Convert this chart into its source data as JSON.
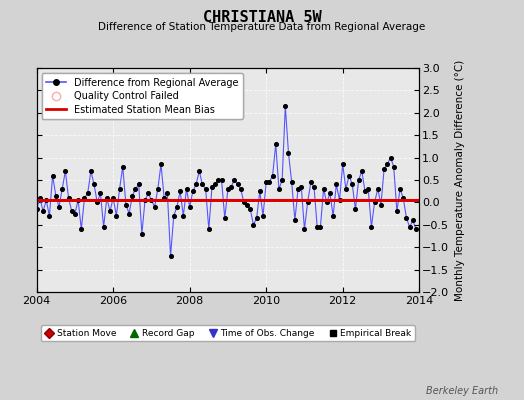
{
  "title": "CHRISTIANA 5W",
  "subtitle": "Difference of Station Temperature Data from Regional Average",
  "ylabel": "Monthly Temperature Anomaly Difference (°C)",
  "xlim": [
    2004.0,
    2014.0
  ],
  "ylim": [
    -2.0,
    3.0
  ],
  "yticks": [
    -2,
    -1.5,
    -1,
    -0.5,
    0,
    0.5,
    1,
    1.5,
    2,
    2.5,
    3
  ],
  "xticks": [
    2004,
    2006,
    2008,
    2010,
    2012,
    2014
  ],
  "bias_value": 0.05,
  "background_color": "#d3d3d3",
  "plot_bg_color": "#e8e8e8",
  "line_color": "#5555ff",
  "marker_color": "#000000",
  "bias_color": "#dd0000",
  "watermark": "Berkeley Earth",
  "time_series": [
    2004.0,
    2004.083,
    2004.167,
    2004.25,
    2004.333,
    2004.417,
    2004.5,
    2004.583,
    2004.667,
    2004.75,
    2004.833,
    2004.917,
    2005.0,
    2005.083,
    2005.167,
    2005.25,
    2005.333,
    2005.417,
    2005.5,
    2005.583,
    2005.667,
    2005.75,
    2005.833,
    2005.917,
    2006.0,
    2006.083,
    2006.167,
    2006.25,
    2006.333,
    2006.417,
    2006.5,
    2006.583,
    2006.667,
    2006.75,
    2006.833,
    2006.917,
    2007.0,
    2007.083,
    2007.167,
    2007.25,
    2007.333,
    2007.417,
    2007.5,
    2007.583,
    2007.667,
    2007.75,
    2007.833,
    2007.917,
    2008.0,
    2008.083,
    2008.167,
    2008.25,
    2008.333,
    2008.417,
    2008.5,
    2008.583,
    2008.667,
    2008.75,
    2008.833,
    2008.917,
    2009.0,
    2009.083,
    2009.167,
    2009.25,
    2009.333,
    2009.417,
    2009.5,
    2009.583,
    2009.667,
    2009.75,
    2009.833,
    2009.917,
    2010.0,
    2010.083,
    2010.167,
    2010.25,
    2010.333,
    2010.417,
    2010.5,
    2010.583,
    2010.667,
    2010.75,
    2010.833,
    2010.917,
    2011.0,
    2011.083,
    2011.167,
    2011.25,
    2011.333,
    2011.417,
    2011.5,
    2011.583,
    2011.667,
    2011.75,
    2011.833,
    2011.917,
    2012.0,
    2012.083,
    2012.167,
    2012.25,
    2012.333,
    2012.417,
    2012.5,
    2012.583,
    2012.667,
    2012.75,
    2012.833,
    2012.917,
    2013.0,
    2013.083,
    2013.167,
    2013.25,
    2013.333,
    2013.417,
    2013.5,
    2013.583,
    2013.667,
    2013.75,
    2013.833,
    2013.917
  ],
  "values": [
    -0.15,
    0.1,
    -0.2,
    0.05,
    -0.3,
    0.6,
    0.15,
    -0.1,
    0.3,
    0.7,
    0.1,
    -0.2,
    -0.25,
    0.05,
    -0.6,
    0.1,
    0.2,
    0.7,
    0.4,
    0.0,
    0.2,
    -0.55,
    0.1,
    -0.2,
    0.1,
    -0.3,
    0.3,
    0.8,
    -0.05,
    -0.25,
    0.15,
    0.3,
    0.4,
    -0.7,
    0.05,
    0.2,
    0.05,
    -0.1,
    0.3,
    0.85,
    0.1,
    0.2,
    -1.2,
    -0.3,
    -0.1,
    0.25,
    -0.3,
    0.3,
    -0.1,
    0.25,
    0.4,
    0.7,
    0.4,
    0.3,
    -0.6,
    0.35,
    0.4,
    0.5,
    0.5,
    -0.35,
    0.3,
    0.35,
    0.5,
    0.4,
    0.3,
    0.0,
    -0.05,
    -0.15,
    -0.5,
    -0.35,
    0.25,
    -0.3,
    0.45,
    0.45,
    0.6,
    1.3,
    0.3,
    0.5,
    2.15,
    1.1,
    0.45,
    -0.4,
    0.3,
    0.35,
    -0.6,
    0.0,
    0.45,
    0.35,
    -0.55,
    -0.55,
    0.3,
    0.0,
    0.2,
    -0.3,
    0.4,
    0.05,
    0.85,
    0.3,
    0.6,
    0.4,
    -0.15,
    0.5,
    0.7,
    0.25,
    0.3,
    -0.55,
    0.0,
    0.3,
    -0.05,
    0.75,
    0.85,
    1.0,
    0.8,
    -0.2,
    0.3,
    0.1,
    -0.35,
    -0.55,
    -0.4,
    -0.6
  ]
}
